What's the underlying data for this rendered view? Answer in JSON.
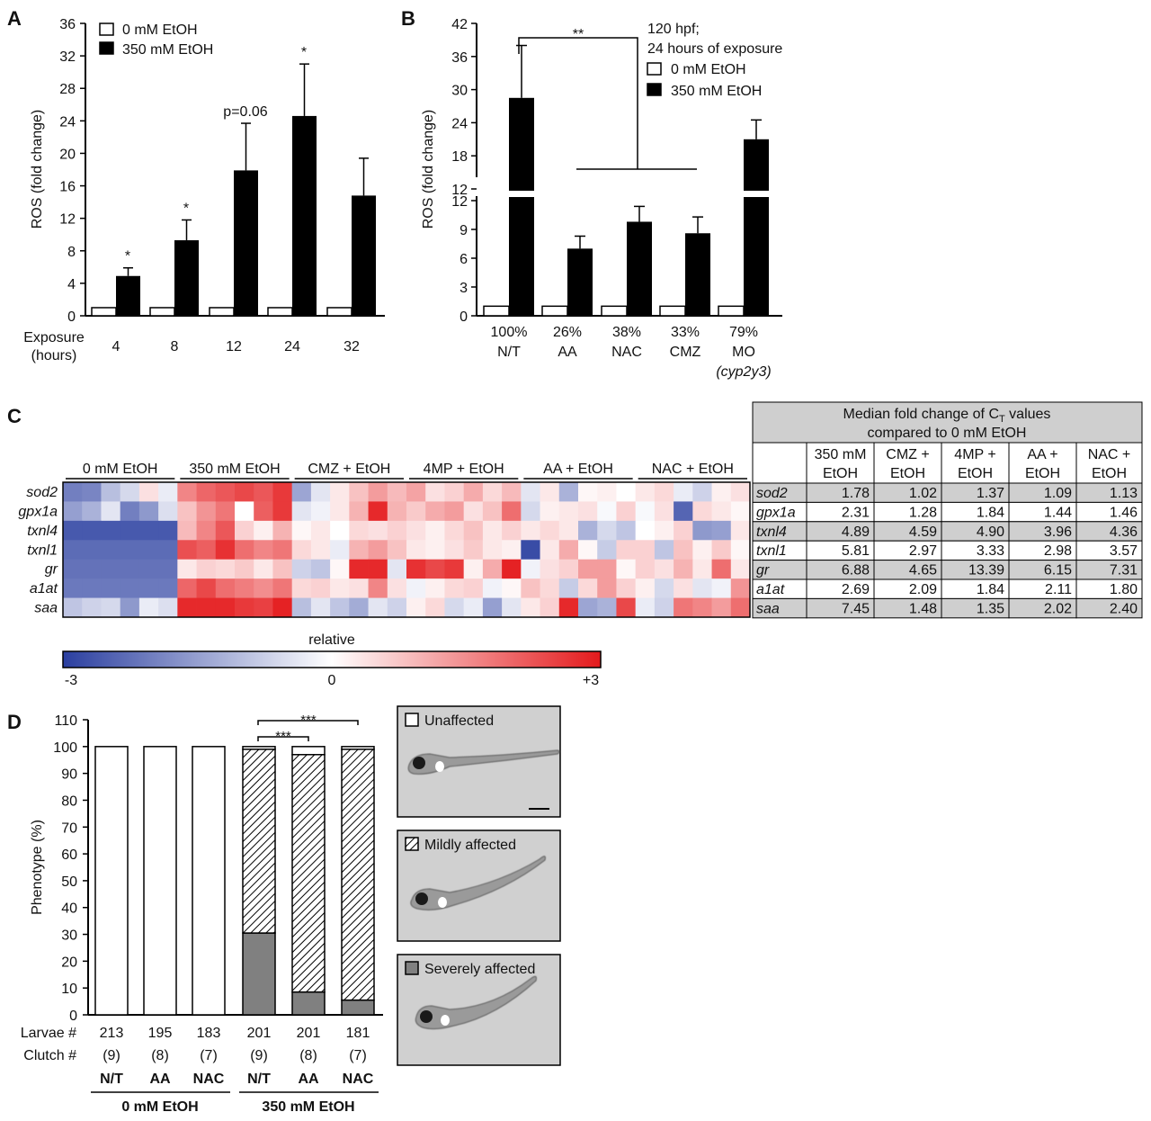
{
  "panel_labels": {
    "a": "A",
    "b": "B",
    "c": "C",
    "d": "D"
  },
  "chart_data": [
    {
      "panel": "A",
      "type": "bar",
      "ylabel": "ROS (fold change)",
      "xlabel": "Exposure\n(hours)",
      "categories": [
        "4",
        "8",
        "12",
        "24",
        "32"
      ],
      "ylim": [
        0,
        36
      ],
      "yticks": [
        0,
        4,
        8,
        12,
        16,
        20,
        24,
        28,
        32,
        36
      ],
      "legend": [
        "0 mM EtOH",
        "350 mM EtOH"
      ],
      "series": [
        {
          "name": "0 mM EtOH",
          "color": "#ffffff",
          "values": [
            1,
            1,
            1,
            1,
            1
          ]
        },
        {
          "name": "350 mM EtOH",
          "color": "#000000",
          "values": [
            4.9,
            9.3,
            17.9,
            24.6,
            14.8
          ],
          "errors": [
            1.0,
            2.5,
            5.8,
            6.4,
            4.6
          ]
        }
      ],
      "annotations": [
        "*",
        "*",
        "p=0.06",
        "*",
        ""
      ]
    },
    {
      "panel": "B",
      "type": "bar",
      "ylabel": "ROS (fold change)",
      "categories": [
        "100%\nN/T",
        "26%\nAA",
        "38%\nNAC",
        "33%\nCMZ",
        "79%\nMO\n(cyp2y3)"
      ],
      "broken_axis": true,
      "yticks_lower": [
        0,
        3,
        6,
        9,
        12
      ],
      "yticks_upper": [
        12,
        18,
        24,
        30,
        36,
        42
      ],
      "legend_title": "120 hpf;\n24 hours of exposure",
      "legend": [
        "0 mM EtOH",
        "350 mM EtOH"
      ],
      "series": [
        {
          "name": "0 mM EtOH",
          "color": "#ffffff",
          "values": [
            1,
            1,
            1,
            1,
            1
          ]
        },
        {
          "name": "350 mM EtOH",
          "color": "#000000",
          "values": [
            28.5,
            7.0,
            9.8,
            8.6,
            21.0
          ],
          "errors": [
            9.5,
            1.3,
            1.6,
            1.7,
            3.5
          ]
        }
      ],
      "significance": "**"
    },
    {
      "panel": "C",
      "type": "heatmap",
      "groups": [
        "0 mM EtOH",
        "350 mM EtOH",
        "CMZ + EtOH",
        "4MP + EtOH",
        "AA + EtOH",
        "NAC + EtOH"
      ],
      "rows": [
        "sod2",
        "gpx1a",
        "txnl4",
        "txnl1",
        "gr",
        "a1at",
        "saa"
      ],
      "colorbar_label": "relative",
      "colorbar_ticks": [
        "-3",
        "0",
        "+3"
      ],
      "values": [
        [
          -2.0,
          -1.9,
          -1.0,
          -0.6,
          0.4,
          -0.3,
          1.6,
          2.0,
          2.2,
          2.4,
          2.2,
          2.6,
          -1.4,
          -0.4,
          0.3,
          0.8,
          1.3,
          0.9,
          1.2,
          0.4,
          0.6,
          1.1,
          0.5,
          0.9,
          -0.4,
          0.3,
          -1.2,
          0.1,
          0.2,
          0.0,
          0.3,
          0.5,
          -0.3,
          -0.7,
          0.2,
          0.4
        ],
        [
          -1.5,
          -1.2,
          -0.4,
          -2.0,
          -1.6,
          -0.5,
          0.8,
          1.4,
          1.8,
          0.0,
          2.1,
          2.6,
          -0.4,
          -0.2,
          0.3,
          1.0,
          2.8,
          1.0,
          0.7,
          1.1,
          1.3,
          0.4,
          0.8,
          1.9,
          -0.6,
          0.2,
          0.3,
          0.4,
          -0.1,
          0.6,
          -0.1,
          0.4,
          -2.4,
          0.5,
          0.3,
          0.1
        ],
        [
          -2.6,
          -2.6,
          -2.6,
          -2.6,
          -2.6,
          -2.6,
          0.9,
          1.6,
          2.2,
          0.6,
          0.2,
          1.0,
          0.1,
          0.3,
          0.0,
          0.5,
          0.4,
          0.6,
          0.4,
          0.2,
          0.5,
          0.8,
          0.3,
          0.6,
          0.3,
          0.5,
          0.3,
          -1.2,
          -0.6,
          -0.9,
          0.0,
          0.2,
          0.6,
          -1.6,
          -1.5,
          0.3
        ],
        [
          -2.3,
          -2.3,
          -2.3,
          -2.3,
          -2.3,
          -2.3,
          2.3,
          2.1,
          2.7,
          1.9,
          1.6,
          1.8,
          0.5,
          0.3,
          -0.3,
          1.0,
          1.3,
          0.8,
          0.3,
          0.2,
          0.4,
          0.7,
          0.3,
          0.2,
          -2.8,
          0.3,
          1.1,
          0.1,
          -0.8,
          0.6,
          0.6,
          -0.9,
          0.8,
          0.2,
          0.7,
          0.1
        ],
        [
          -2.2,
          -2.2,
          -2.2,
          -2.2,
          -2.2,
          -2.2,
          0.3,
          0.6,
          0.5,
          0.7,
          0.3,
          0.8,
          -0.7,
          -0.9,
          0.1,
          2.8,
          2.8,
          -0.4,
          2.7,
          2.4,
          2.6,
          0.2,
          1.1,
          2.9,
          -0.2,
          0.4,
          0.6,
          1.3,
          1.3,
          0.1,
          0.6,
          0.4,
          1.0,
          0.3,
          1.9,
          0.3
        ],
        [
          -2.1,
          -2.1,
          -2.1,
          -2.1,
          -2.1,
          -2.1,
          2.0,
          2.4,
          1.9,
          1.7,
          1.5,
          1.8,
          0.5,
          0.6,
          0.3,
          0.4,
          1.6,
          0.4,
          -0.2,
          0.2,
          0.5,
          0.6,
          -0.2,
          0.1,
          0.8,
          0.5,
          -0.8,
          0.5,
          1.3,
          0.6,
          0.2,
          -0.6,
          0.4,
          -0.4,
          -0.2,
          1.4
        ],
        [
          -0.9,
          -0.7,
          -0.6,
          -1.6,
          -0.3,
          -0.5,
          2.8,
          2.8,
          2.8,
          2.6,
          2.5,
          2.9,
          -1.0,
          -0.4,
          -0.9,
          -1.3,
          -0.4,
          -0.7,
          0.2,
          0.5,
          -0.6,
          -0.3,
          -1.5,
          -0.4,
          0.3,
          0.6,
          2.8,
          -1.4,
          -1.2,
          2.4,
          -0.3,
          -0.7,
          1.8,
          1.6,
          1.3,
          1.9
        ]
      ]
    },
    {
      "panel": "C-table",
      "type": "table",
      "title": "Median fold change of C",
      "title_sub": "T",
      "title_rest": " values",
      "title_line2": "compared to 0 mM EtOH",
      "headers": [
        [
          "350 mM",
          "EtOH"
        ],
        [
          "CMZ +",
          "EtOH"
        ],
        [
          "4MP +",
          "EtOH"
        ],
        [
          "AA +",
          "EtOH"
        ],
        [
          "NAC +",
          "EtOH"
        ]
      ],
      "rows": [
        {
          "gene": "sod2",
          "values": [
            "1.78",
            "1.02",
            "1.37",
            "1.09",
            "1.13"
          ]
        },
        {
          "gene": "gpx1a",
          "values": [
            "2.31",
            "1.28",
            "1.84",
            "1.44",
            "1.46"
          ]
        },
        {
          "gene": "txnl4",
          "values": [
            "4.89",
            "4.59",
            "4.90",
            "3.96",
            "4.36"
          ]
        },
        {
          "gene": "txnl1",
          "values": [
            "5.81",
            "2.97",
            "3.33",
            "2.98",
            "3.57"
          ]
        },
        {
          "gene": "gr",
          "values": [
            "6.88",
            "4.65",
            "13.39",
            "6.15",
            "7.31"
          ]
        },
        {
          "gene": "a1at",
          "values": [
            "2.69",
            "2.09",
            "1.84",
            "2.11",
            "1.80"
          ]
        },
        {
          "gene": "saa",
          "values": [
            "7.45",
            "1.48",
            "1.35",
            "2.02",
            "2.40"
          ]
        }
      ]
    },
    {
      "panel": "D",
      "type": "bar",
      "stacked": true,
      "ylabel": "Phenotype (%)",
      "ylim": [
        0,
        110
      ],
      "yticks": [
        0,
        10,
        20,
        30,
        40,
        50,
        60,
        70,
        80,
        90,
        100,
        110
      ],
      "categories": [
        "N/T",
        "AA",
        "NAC",
        "N/T",
        "AA",
        "NAC"
      ],
      "groups": [
        "0 mM EtOH",
        "350 mM EtOH"
      ],
      "row_labels": [
        "Larvae #",
        "Clutch #"
      ],
      "larvae": [
        "213",
        "195",
        "183",
        "201",
        "201",
        "181"
      ],
      "clutch": [
        "(9)",
        "(8)",
        "(7)",
        "(9)",
        "(8)",
        "(7)"
      ],
      "series": [
        {
          "name": "Severely affected",
          "values": [
            0,
            0,
            0,
            30.5,
            8.5,
            5.5
          ]
        },
        {
          "name": "Mildly affected",
          "values": [
            0,
            0,
            0,
            68.5,
            88.5,
            93.5
          ]
        },
        {
          "name": "Unaffected",
          "values": [
            100,
            100,
            100,
            1.0,
            3.0,
            1.0
          ]
        }
      ],
      "significance": [
        "***",
        "***"
      ]
    }
  ],
  "images": [
    {
      "label": "Unaffected"
    },
    {
      "label": "Mildly affected"
    },
    {
      "label": "Severely affected"
    }
  ]
}
